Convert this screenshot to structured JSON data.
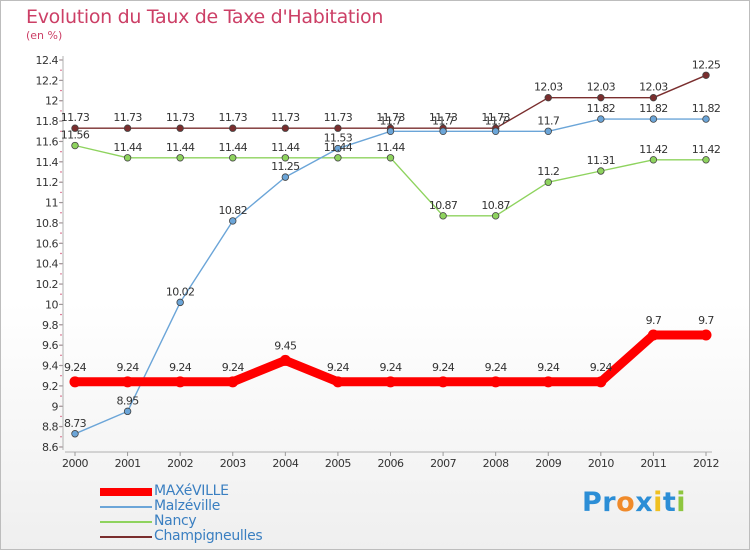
{
  "header": {
    "title": "Evolution du Taux de Taxe d'Habitation",
    "unit": "(en %)"
  },
  "chart_data": {
    "type": "line",
    "title": "Evolution du Taux de Taxe d'Habitation",
    "ylabel": "(en %)",
    "xlabel": "",
    "x": [
      "2000",
      "2001",
      "2002",
      "2003",
      "2004",
      "2005",
      "2006",
      "2007",
      "2008",
      "2009",
      "2010",
      "2011",
      "2012"
    ],
    "ylim": [
      8.6,
      12.4
    ],
    "yticks": [
      "8.6",
      "8.8",
      "9",
      "9.2",
      "9.4",
      "9.6",
      "9.8",
      "10",
      "10.2",
      "10.4",
      "10.6",
      "10.8",
      "11",
      "11.2",
      "11.4",
      "11.6",
      "11.8",
      "12",
      "12.2",
      "12.4"
    ],
    "grid": false,
    "legend_position": "bottom-left",
    "series": [
      {
        "name": "MAXéVILLE",
        "color": "#ff0000",
        "values": [
          9.24,
          9.24,
          9.24,
          9.24,
          9.45,
          9.24,
          9.24,
          9.24,
          9.24,
          9.24,
          9.24,
          9.7,
          9.7
        ],
        "labels": [
          "9.24",
          "9.24",
          "9.24",
          "9.24",
          "9.45",
          "9.24",
          "9.24",
          "9.24",
          "9.24",
          "9.24",
          "9.24",
          "9.7",
          "9.7"
        ]
      },
      {
        "name": "Malzéville",
        "color": "#6ba5d8",
        "values": [
          8.73,
          8.95,
          10.02,
          10.82,
          11.25,
          11.53,
          11.7,
          11.7,
          11.7,
          11.7,
          11.82,
          11.82,
          11.82
        ],
        "labels": [
          "8.73",
          "8.95",
          "10.02",
          "10.82",
          "11.25",
          "11.53",
          "11.7",
          "11.7",
          "11.7",
          "11.7",
          "11.82",
          "11.82",
          "11.82"
        ]
      },
      {
        "name": "Nancy",
        "color": "#8ed35e",
        "values": [
          11.56,
          11.44,
          11.44,
          11.44,
          11.44,
          11.44,
          11.44,
          10.87,
          10.87,
          11.2,
          11.31,
          11.42,
          11.42
        ],
        "labels": [
          "11.56",
          "11.44",
          "11.44",
          "11.44",
          "11.44",
          "11.44",
          "11.44",
          "10.87",
          "10.87",
          "11.2",
          "11.31",
          "11.42",
          "11.42"
        ]
      },
      {
        "name": "Champigneulles",
        "color": "#7a2e2e",
        "values": [
          11.73,
          11.73,
          11.73,
          11.73,
          11.73,
          11.73,
          11.73,
          11.73,
          11.73,
          12.03,
          12.03,
          12.03,
          12.25
        ],
        "labels": [
          "11.73",
          "11.73",
          "11.73",
          "11.73",
          "11.73",
          "11.73",
          "11.73",
          "11.73",
          "11.73",
          "12.03",
          "12.03",
          "12.03",
          "12.25"
        ]
      }
    ]
  },
  "logo": {
    "letters": [
      "P",
      "r",
      "o",
      "x",
      "i",
      "t",
      "i"
    ],
    "colors": [
      "#2c8ed6",
      "#2c8ed6",
      "#f08a2a",
      "#2c8ed6",
      "#f0c020",
      "#2c8ed6",
      "#8ec63f"
    ]
  }
}
